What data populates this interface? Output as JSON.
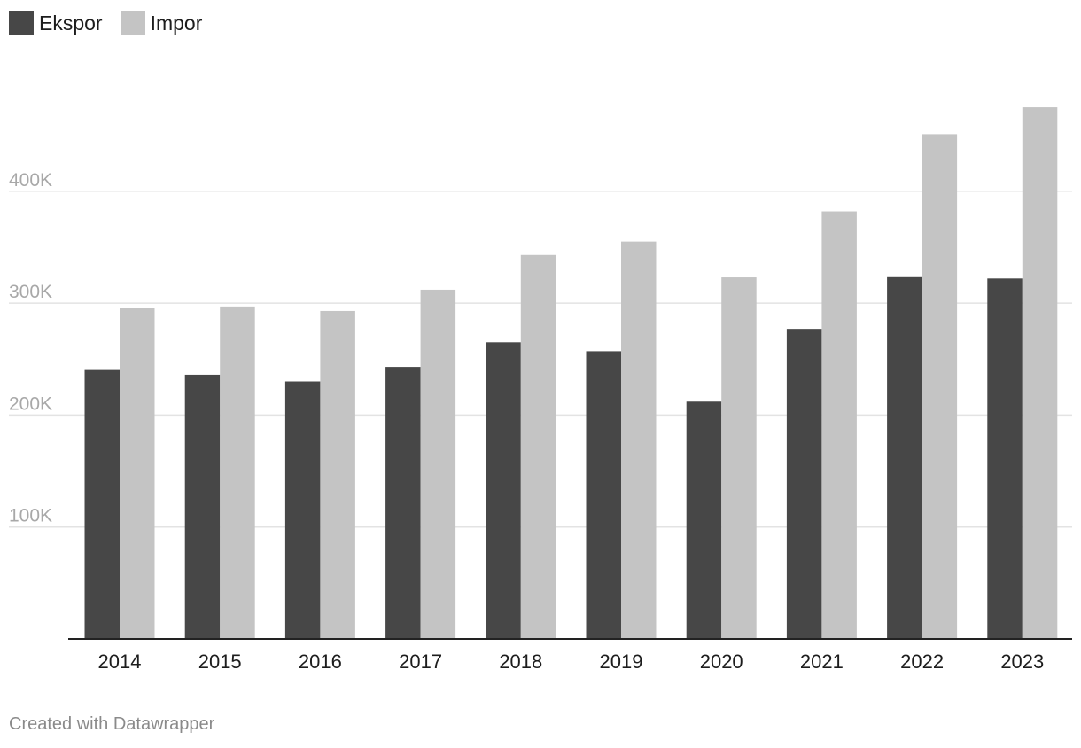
{
  "chart_data": {
    "type": "bar",
    "title": "",
    "xlabel": "",
    "ylabel": "",
    "categories": [
      "2014",
      "2015",
      "2016",
      "2017",
      "2018",
      "2019",
      "2020",
      "2021",
      "2022",
      "2023"
    ],
    "series": [
      {
        "name": "Ekspor",
        "color": "#474747",
        "values": [
          241000,
          236000,
          230000,
          243000,
          265000,
          257000,
          212000,
          277000,
          324000,
          322000
        ]
      },
      {
        "name": "Impor",
        "color": "#c4c4c4",
        "values": [
          296000,
          297000,
          293000,
          312000,
          343000,
          355000,
          323000,
          382000,
          451000,
          475000
        ]
      }
    ],
    "ylim": [
      0,
      500000
    ],
    "yticks": [
      {
        "value": 100000,
        "label": "100K"
      },
      {
        "value": 200000,
        "label": "200K"
      },
      {
        "value": 300000,
        "label": "300K"
      },
      {
        "value": 400000,
        "label": "400K"
      }
    ],
    "grid": true,
    "legend": "top-left"
  },
  "footer": {
    "credit": "Created with Datawrapper"
  }
}
